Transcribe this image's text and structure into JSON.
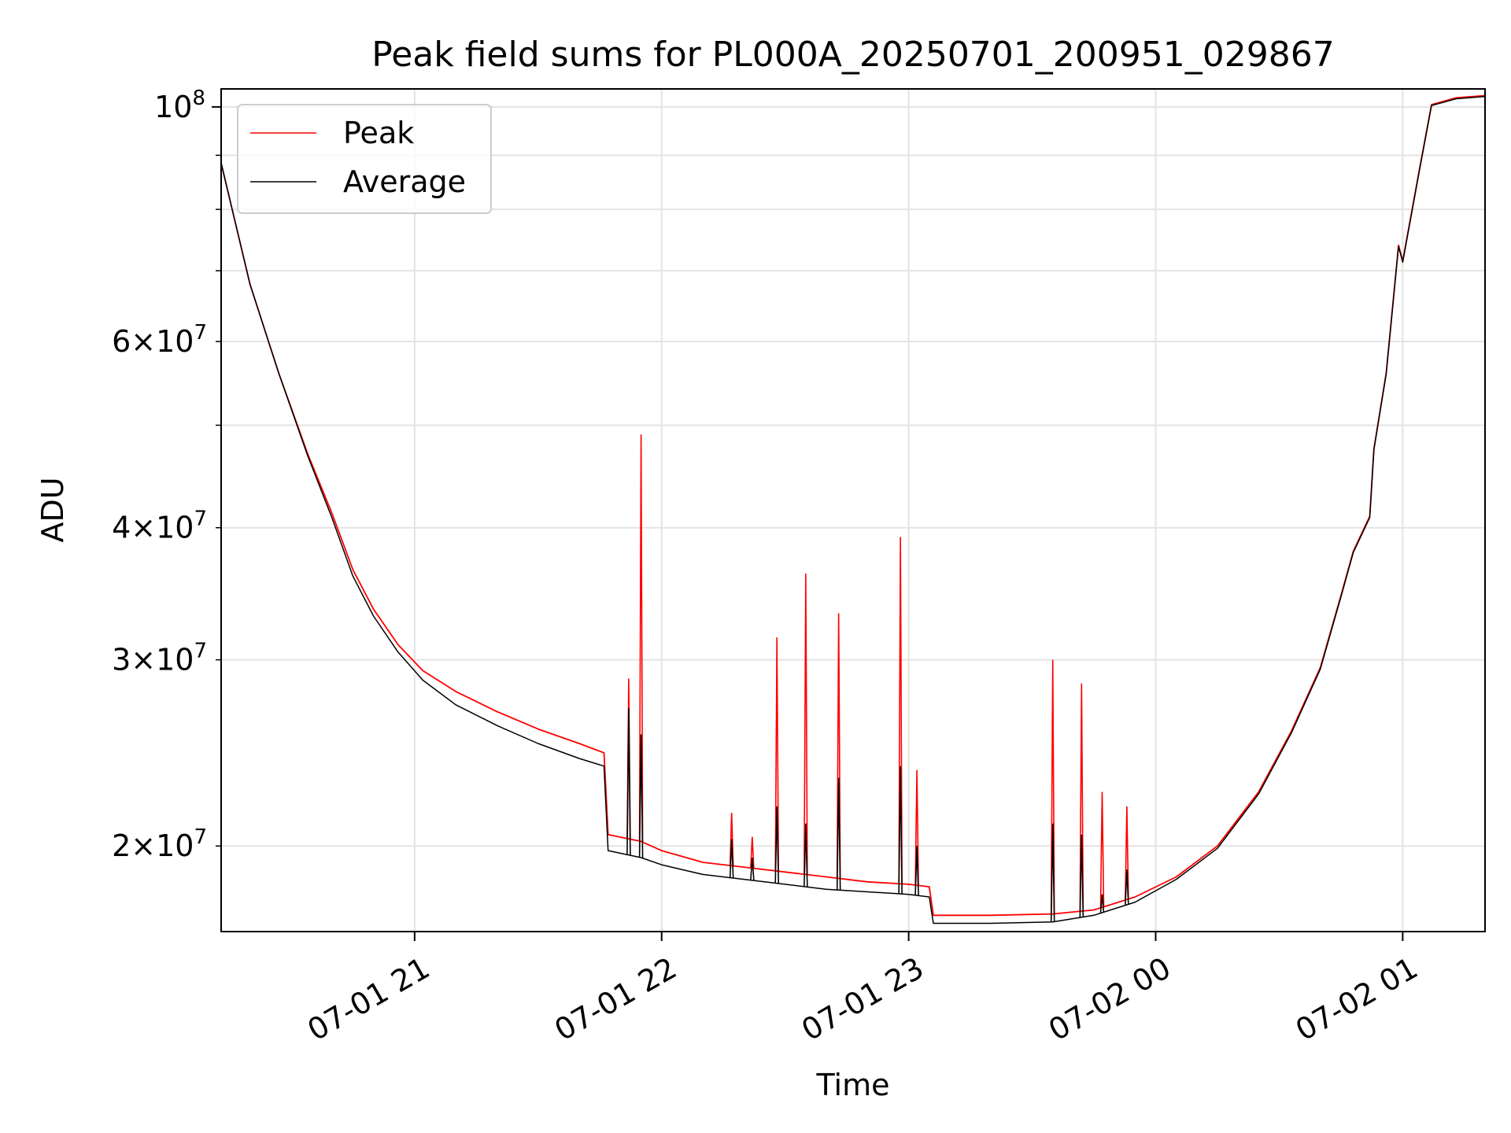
{
  "chart_data": {
    "type": "line",
    "title": "Peak field sums for PL000A_20250701_200951_029867",
    "xlabel": "Time",
    "ylabel": "ADU",
    "yscale": "log",
    "grid": true,
    "legend_position": "upper left",
    "xlim": [
      "2025-07-01 20:13",
      "2025-07-02 01:20"
    ],
    "ylim": [
      16600000,
      104000000
    ],
    "x_ticks": [
      {
        "value": "2025-07-01 21:00",
        "label": "07-01 21"
      },
      {
        "value": "2025-07-01 22:00",
        "label": "07-01 22"
      },
      {
        "value": "2025-07-01 23:00",
        "label": "07-01 23"
      },
      {
        "value": "2025-07-02 00:00",
        "label": "07-02 00"
      },
      {
        "value": "2025-07-02 01:00",
        "label": "07-02 01"
      }
    ],
    "y_major_tick": {
      "value": 100000000,
      "base": "10",
      "exp": "8"
    },
    "y_minor_ticks": [
      {
        "value": 20000000,
        "mant": "2",
        "base": "10",
        "exp": "7"
      },
      {
        "value": 30000000,
        "mant": "3",
        "base": "10",
        "exp": "7"
      },
      {
        "value": 40000000,
        "mant": "4",
        "base": "10",
        "exp": "7"
      },
      {
        "value": 50000000
      },
      {
        "value": 60000000,
        "mant": "6",
        "base": "10",
        "exp": "7"
      },
      {
        "value": 70000000
      },
      {
        "value": 80000000
      },
      {
        "value": 90000000
      }
    ],
    "series": [
      {
        "name": "Peak",
        "color": "#ff0000",
        "points": [
          [
            "2025-07-01 20:13",
            88500000
          ],
          [
            "2025-07-01 20:20",
            68000000
          ],
          [
            "2025-07-01 20:27",
            56000000
          ],
          [
            "2025-07-01 20:34",
            47000000
          ],
          [
            "2025-07-01 20:40",
            41200000
          ],
          [
            "2025-07-01 20:45",
            36500000
          ],
          [
            "2025-07-01 20:50",
            33500000
          ],
          [
            "2025-07-01 20:56",
            31000000
          ],
          [
            "2025-07-01 21:02",
            29300000
          ],
          [
            "2025-07-01 21:10",
            28000000
          ],
          [
            "2025-07-01 21:20",
            26800000
          ],
          [
            "2025-07-01 21:30",
            25800000
          ],
          [
            "2025-07-01 21:40",
            25000000
          ],
          [
            "2025-07-01 21:46",
            24500000
          ],
          [
            "2025-07-01 21:47",
            20500000
          ],
          [
            "2025-07-01 21:55",
            20200000
          ],
          [
            "2025-07-01 22:00",
            19800000
          ],
          [
            "2025-07-01 22:10",
            19300000
          ],
          [
            "2025-07-01 22:20",
            19100000
          ],
          [
            "2025-07-01 22:30",
            18900000
          ],
          [
            "2025-07-01 22:40",
            18700000
          ],
          [
            "2025-07-01 22:50",
            18500000
          ],
          [
            "2025-07-01 23:00",
            18400000
          ],
          [
            "2025-07-01 23:05",
            18300000
          ],
          [
            "2025-07-01 23:06",
            17200000
          ],
          [
            "2025-07-01 23:20",
            17200000
          ],
          [
            "2025-07-01 23:35",
            17250000
          ],
          [
            "2025-07-01 23:45",
            17400000
          ],
          [
            "2025-07-01 23:55",
            17900000
          ],
          [
            "2025-07-02 00:05",
            18700000
          ],
          [
            "2025-07-02 00:15",
            20000000
          ],
          [
            "2025-07-02 00:25",
            22500000
          ],
          [
            "2025-07-02 00:33",
            25700000
          ],
          [
            "2025-07-02 00:40",
            29500000
          ],
          [
            "2025-07-02 00:45",
            34500000
          ],
          [
            "2025-07-02 00:48",
            38000000
          ],
          [
            "2025-07-02 00:52",
            41000000
          ],
          [
            "2025-07-02 00:53",
            47500000
          ],
          [
            "2025-07-02 00:56",
            56000000
          ],
          [
            "2025-07-02 00:59",
            74000000
          ],
          [
            "2025-07-02 01:00",
            71500000
          ],
          [
            "2025-07-02 01:04",
            87000000
          ],
          [
            "2025-07-02 01:07",
            100500000
          ],
          [
            "2025-07-02 01:13",
            102000000
          ],
          [
            "2025-07-02 01:20",
            102500000
          ]
        ]
      },
      {
        "name": "Average",
        "color": "#000000",
        "points": [
          [
            "2025-07-01 20:13",
            88500000
          ],
          [
            "2025-07-01 20:20",
            68000000
          ],
          [
            "2025-07-01 20:27",
            56000000
          ],
          [
            "2025-07-01 20:34",
            46800000
          ],
          [
            "2025-07-01 20:40",
            40800000
          ],
          [
            "2025-07-01 20:45",
            36000000
          ],
          [
            "2025-07-01 20:50",
            33000000
          ],
          [
            "2025-07-01 20:56",
            30500000
          ],
          [
            "2025-07-01 21:02",
            28700000
          ],
          [
            "2025-07-01 21:10",
            27200000
          ],
          [
            "2025-07-01 21:20",
            26000000
          ],
          [
            "2025-07-01 21:30",
            25000000
          ],
          [
            "2025-07-01 21:40",
            24200000
          ],
          [
            "2025-07-01 21:46",
            23800000
          ],
          [
            "2025-07-01 21:47",
            19800000
          ],
          [
            "2025-07-01 21:55",
            19500000
          ],
          [
            "2025-07-01 22:00",
            19200000
          ],
          [
            "2025-07-01 22:10",
            18800000
          ],
          [
            "2025-07-01 22:20",
            18600000
          ],
          [
            "2025-07-01 22:30",
            18400000
          ],
          [
            "2025-07-01 22:40",
            18200000
          ],
          [
            "2025-07-01 22:50",
            18100000
          ],
          [
            "2025-07-01 23:00",
            18000000
          ],
          [
            "2025-07-01 23:05",
            17900000
          ],
          [
            "2025-07-01 23:06",
            16900000
          ],
          [
            "2025-07-01 23:20",
            16900000
          ],
          [
            "2025-07-01 23:35",
            16950000
          ],
          [
            "2025-07-01 23:45",
            17200000
          ],
          [
            "2025-07-01 23:55",
            17700000
          ],
          [
            "2025-07-02 00:05",
            18600000
          ],
          [
            "2025-07-02 00:15",
            19900000
          ],
          [
            "2025-07-02 00:25",
            22400000
          ],
          [
            "2025-07-02 00:33",
            25600000
          ],
          [
            "2025-07-02 00:40",
            29400000
          ],
          [
            "2025-07-02 00:45",
            34400000
          ],
          [
            "2025-07-02 00:48",
            37900000
          ],
          [
            "2025-07-02 00:52",
            40900000
          ],
          [
            "2025-07-02 00:53",
            47400000
          ],
          [
            "2025-07-02 00:56",
            55900000
          ],
          [
            "2025-07-02 00:59",
            73800000
          ],
          [
            "2025-07-02 01:00",
            71300000
          ],
          [
            "2025-07-02 01:04",
            86800000
          ],
          [
            "2025-07-02 01:07",
            100300000
          ],
          [
            "2025-07-02 01:13",
            101800000
          ],
          [
            "2025-07-02 01:20",
            102300000
          ]
        ]
      }
    ],
    "spikes": [
      {
        "time": "2025-07-01 21:52",
        "peak": 28800000,
        "average": 27000000
      },
      {
        "time": "2025-07-01 21:55",
        "peak": 49000000,
        "average": 25500000
      },
      {
        "time": "2025-07-01 22:17",
        "peak": 21500000,
        "average": 20300000
      },
      {
        "time": "2025-07-01 22:22",
        "peak": 20400000,
        "average": 19500000
      },
      {
        "time": "2025-07-01 22:28",
        "peak": 31500000,
        "average": 21800000
      },
      {
        "time": "2025-07-01 22:35",
        "peak": 36200000,
        "average": 21000000
      },
      {
        "time": "2025-07-01 22:43",
        "peak": 33200000,
        "average": 23200000
      },
      {
        "time": "2025-07-01 22:58",
        "peak": 39200000,
        "average": 23800000
      },
      {
        "time": "2025-07-01 23:02",
        "peak": 23600000,
        "average": 20000000
      },
      {
        "time": "2025-07-01 23:35",
        "peak": 30000000,
        "average": 21000000
      },
      {
        "time": "2025-07-01 23:42",
        "peak": 28500000,
        "average": 20500000
      },
      {
        "time": "2025-07-01 23:47",
        "peak": 22500000,
        "average": 18000000
      },
      {
        "time": "2025-07-01 23:53",
        "peak": 21800000,
        "average": 19000000
      }
    ]
  }
}
